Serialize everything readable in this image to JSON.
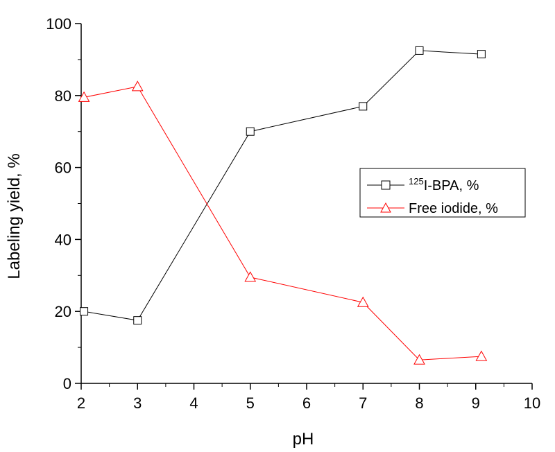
{
  "chart_data": {
    "type": "line",
    "xlabel": "pH",
    "ylabel": "Labeling yield,  %",
    "xlim": [
      2,
      10
    ],
    "ylim": [
      0,
      100
    ],
    "xticks": [
      "2",
      "3",
      "4",
      "5",
      "6",
      "7",
      "8",
      "9",
      "10"
    ],
    "yticks": [
      "0",
      "20",
      "40",
      "60",
      "80",
      "100"
    ],
    "grid": false,
    "legend_position": "right-center",
    "series": [
      {
        "name_sup": "125",
        "name_rest": "I-BPA,   %",
        "marker": "square",
        "color": "#000000",
        "x": [
          2.05,
          3,
          5,
          7,
          8,
          9.1
        ],
        "y": [
          20,
          17.5,
          70,
          77,
          92.5,
          91.5
        ]
      },
      {
        "name": "Free iodide,    %",
        "marker": "triangle",
        "color": "#ff0000",
        "x": [
          2.05,
          3,
          5,
          7,
          8,
          9.1
        ],
        "y": [
          79.5,
          82.5,
          29.5,
          22.5,
          6.5,
          7.5
        ]
      }
    ]
  }
}
